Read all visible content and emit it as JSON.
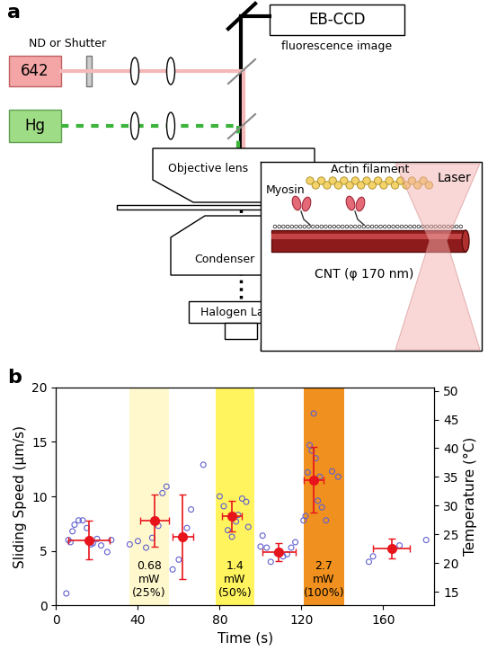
{
  "diagram": {
    "panel_label": "a",
    "camera": {
      "label": "EB-CCD",
      "caption": "fluorescence image"
    },
    "filter_label": "ND or Shutter",
    "laser_source": "642",
    "lamp_source": "Hg",
    "objective": "Objective lens",
    "condenser": "Condenser",
    "lamp": "Halogen Lamp",
    "inset": {
      "laser": "Laser",
      "actin": "Actin filament",
      "myosin": "Myosin",
      "cnt": "CNT (φ 170 nm)"
    }
  },
  "chart_data": {
    "type": "scatter",
    "panel_label": "b",
    "x_label": "Time (s)",
    "y_label": "Sliding Speed (μm/s)",
    "y2_label": "Temperature (°C)",
    "xlim": [
      0,
      185
    ],
    "xticks": [
      0,
      40,
      80,
      120,
      160
    ],
    "ylim": [
      0,
      20
    ],
    "yticks": [
      0,
      5,
      10,
      15,
      20
    ],
    "y2lim": [
      12.6,
      50.6
    ],
    "y2ticks": [
      15,
      20,
      25,
      30,
      35,
      40,
      45,
      50
    ],
    "grid": false,
    "regions": [
      {
        "start": 36,
        "end": 55,
        "color": "#fff8cc",
        "label": [
          "0.68",
          "mW",
          "(25%)"
        ]
      },
      {
        "start": 78,
        "end": 97,
        "color": "#fff35e",
        "label": [
          "1.4",
          "mW",
          "(50%)"
        ]
      },
      {
        "start": 121,
        "end": 141,
        "color": "#f0901e",
        "label": [
          "2.7",
          "mW",
          "(100%)"
        ]
      }
    ],
    "series": [
      {
        "type": "scatter",
        "marker": "o",
        "color": "#6060d0",
        "x": [
          5,
          6,
          7,
          8,
          9,
          11,
          13,
          15,
          17,
          18,
          20,
          22,
          25,
          27,
          36,
          40,
          44,
          47,
          50,
          52,
          54,
          57,
          60,
          62,
          64,
          66,
          72,
          80,
          82,
          84,
          86,
          88,
          89,
          91,
          93,
          94,
          100,
          101,
          103,
          105,
          108,
          111,
          113,
          115,
          117,
          121,
          122,
          123,
          124,
          125,
          126,
          127,
          128,
          129,
          130,
          132,
          135,
          138,
          153,
          155,
          168,
          181
        ],
        "values": [
          1.1,
          6.0,
          5.8,
          6.8,
          7.4,
          7.8,
          7.8,
          7.1,
          5.6,
          5.7,
          6.1,
          5.5,
          4.9,
          6.0,
          5.6,
          5.9,
          5.3,
          6.2,
          7.3,
          10.3,
          10.9,
          3.3,
          4.2,
          6.2,
          7.1,
          8.8,
          12.9,
          10.0,
          9.1,
          6.9,
          6.3,
          7.7,
          8.3,
          9.8,
          9.5,
          7.2,
          5.4,
          6.4,
          5.3,
          4.0,
          4.8,
          4.5,
          4.7,
          5.3,
          5.8,
          7.8,
          8.2,
          12.2,
          14.7,
          14.2,
          17.6,
          13.5,
          9.6,
          11.8,
          9.0,
          7.8,
          12.3,
          11.8,
          4.0,
          4.5,
          5.5,
          6.0
        ]
      },
      {
        "type": "errorbar",
        "marker": "o",
        "color": "#e8141b",
        "x": [
          16,
          48,
          62,
          86,
          109,
          126,
          164
        ],
        "values": [
          6.0,
          7.8,
          6.3,
          8.2,
          4.9,
          11.5,
          5.2
        ],
        "xerr": [
          10,
          7,
          5,
          5,
          8,
          5,
          9
        ],
        "yerr": [
          1.8,
          2.4,
          3.9,
          1.4,
          0.8,
          3.0,
          0.9
        ]
      }
    ]
  }
}
